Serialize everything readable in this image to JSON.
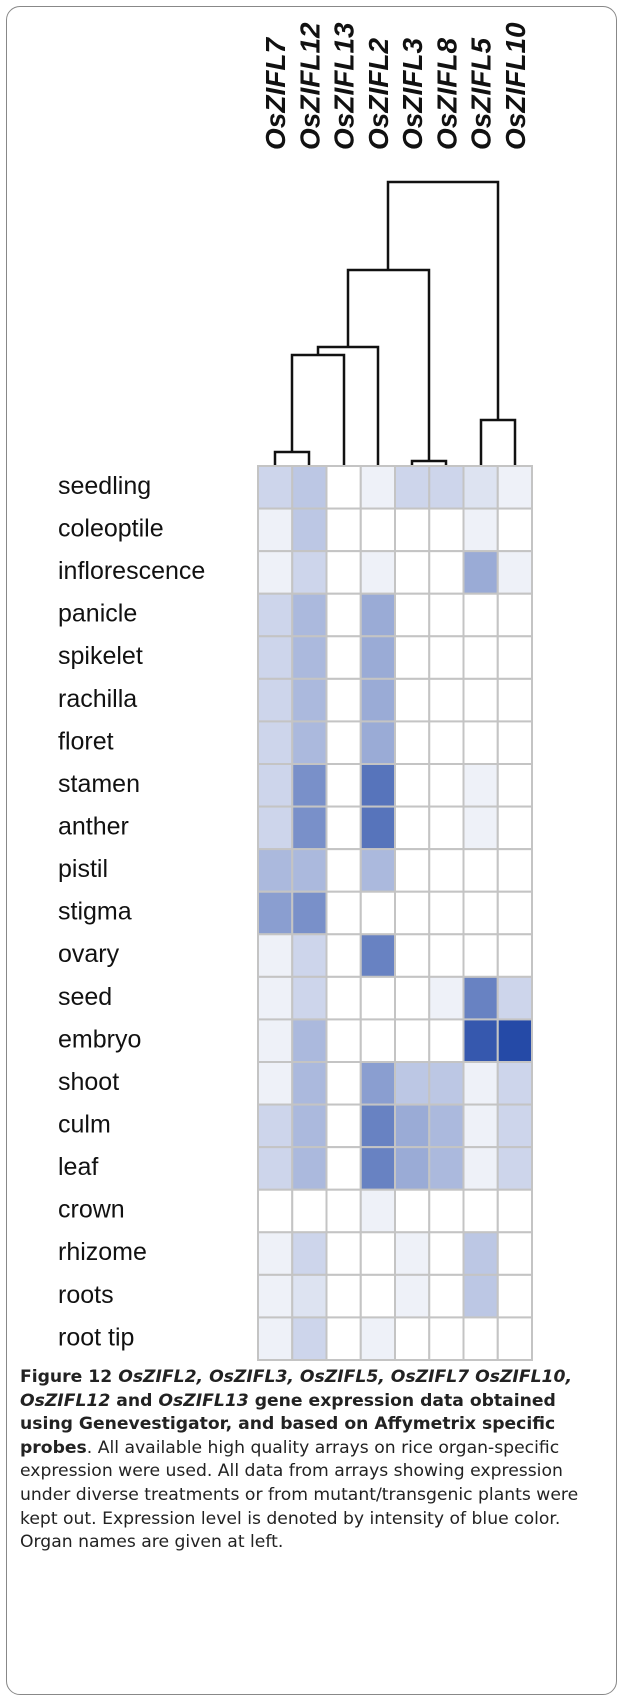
{
  "chart_data": {
    "type": "heatmap",
    "columns": [
      "OsZIFL7",
      "OsZIFL12",
      "OsZIFL13",
      "OsZIFL2",
      "OsZIFL3",
      "OsZIFL8",
      "OsZIFL5",
      "OsZIFL10"
    ],
    "rows": [
      "seedling",
      "coleoptile",
      "inflorescence",
      "panicle",
      "spikelet",
      "rachilla",
      "floret",
      "stamen",
      "anther",
      "pistil",
      "stigma",
      "ovary",
      "seed",
      "embryo",
      "shoot",
      "culm",
      "leaf",
      "crown",
      "rhizome",
      "roots",
      "root tip"
    ],
    "values": [
      [
        1.5,
        2,
        0,
        0.5,
        1.5,
        1.5,
        1,
        0.5
      ],
      [
        0.5,
        2,
        0,
        0,
        0,
        0,
        0.5,
        0
      ],
      [
        0.5,
        1.5,
        0,
        0.5,
        0,
        0,
        3,
        0.5
      ],
      [
        1.5,
        2.5,
        0,
        3,
        0,
        0,
        0,
        0
      ],
      [
        1.5,
        2.5,
        0,
        3,
        0,
        0,
        0,
        0
      ],
      [
        1.5,
        2.5,
        0,
        3,
        0,
        0,
        0,
        0
      ],
      [
        1.5,
        2.5,
        0,
        3,
        0,
        0,
        0,
        0
      ],
      [
        1.5,
        4,
        0,
        5,
        0,
        0,
        0.5,
        0
      ],
      [
        1.5,
        4,
        0,
        5,
        0,
        0,
        0.5,
        0
      ],
      [
        2.5,
        2.5,
        0,
        2.5,
        0,
        0,
        0,
        0
      ],
      [
        3.5,
        4,
        0,
        0,
        0,
        0,
        0,
        0
      ],
      [
        0.5,
        1.5,
        0,
        4.5,
        0,
        0,
        0,
        0
      ],
      [
        0.5,
        1.5,
        0,
        0,
        0,
        0.5,
        4.5,
        1.5
      ],
      [
        0.5,
        2.5,
        0,
        0,
        0,
        0,
        6,
        6.5
      ],
      [
        0.5,
        2.5,
        0,
        3.5,
        2,
        2,
        0.5,
        1.5
      ],
      [
        1.5,
        2.5,
        0,
        4.5,
        3,
        2.5,
        0.5,
        1.5
      ],
      [
        1.5,
        2.5,
        0,
        4.5,
        3,
        2.5,
        0.5,
        1.5
      ],
      [
        0,
        0,
        0,
        0.5,
        0,
        0,
        0,
        0
      ],
      [
        0.5,
        1.5,
        0,
        0,
        0.5,
        0,
        2,
        0
      ],
      [
        0.5,
        1,
        0,
        0,
        0.5,
        0,
        2,
        0
      ],
      [
        0.5,
        1.5,
        0,
        0.5,
        0,
        0,
        0,
        0
      ]
    ],
    "vlim": [
      0,
      7
    ],
    "color_range": [
      "#ffffff",
      "#143ca0"
    ]
  },
  "caption": [
    {
      "text": "Figure 12 ",
      "style": "bold"
    },
    {
      "text": "OsZIFL2, OsZIFL3, OsZIFL5, OsZIFL7 OsZIFL10, OsZIFL12",
      "style": "bold-italic"
    },
    {
      "text": " and ",
      "style": "bold"
    },
    {
      "text": "OsZIFL13",
      "style": "bold-italic"
    },
    {
      "text": " gene expression data obtained using Genevestigator, and based on Affymetrix specific probes",
      "style": "bold"
    },
    {
      "text": ". All available high quality arrays on rice organ-specific expression were used. All data from arrays showing expression under diverse treatments or from mutant/transgenic plants were kept out. Expression level is denoted by intensity of blue color. Organ names are given at left.",
      "style": "regular"
    }
  ]
}
